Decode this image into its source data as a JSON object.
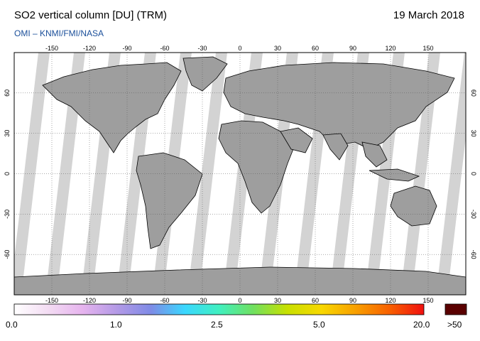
{
  "header": {
    "title": "SO2 vertical column [DU] (TRM)",
    "date": "19 March 2018",
    "credit": "OMI  –  KNMI/FMI/NASA"
  },
  "map": {
    "lon_ticks": [
      "-150",
      "-120",
      "-90",
      "-60",
      "-30",
      "0",
      "30",
      "60",
      "90",
      "120",
      "150"
    ],
    "lon_values": [
      -150,
      -120,
      -90,
      -60,
      -30,
      0,
      30,
      60,
      90,
      120,
      150
    ],
    "lat_ticks": [
      "60",
      "30",
      "0",
      "-30",
      "-60"
    ],
    "lat_values": [
      60,
      30,
      0,
      -30,
      -60
    ],
    "lon_range": [
      -180,
      180
    ],
    "lat_range": [
      -90,
      90
    ],
    "colors": {
      "ocean_nodata": "#d3d3d3",
      "land_nodata": "#9e9e9e",
      "swath": "#ffffff",
      "coast": "#000000"
    }
  },
  "colorbar": {
    "labels": [
      "0.0",
      "1.0",
      "2.5",
      "5.0",
      "20.0"
    ],
    "overflow_label": ">50",
    "overflow_color": "#5a0000",
    "stops": [
      "#ffffff",
      "#f3dcf3",
      "#e6b4ee",
      "#b49ae6",
      "#7f8be6",
      "#3ad7ff",
      "#40f0c0",
      "#70e060",
      "#c8e000",
      "#f8d800",
      "#f8a000",
      "#f86000",
      "#f01010"
    ]
  }
}
